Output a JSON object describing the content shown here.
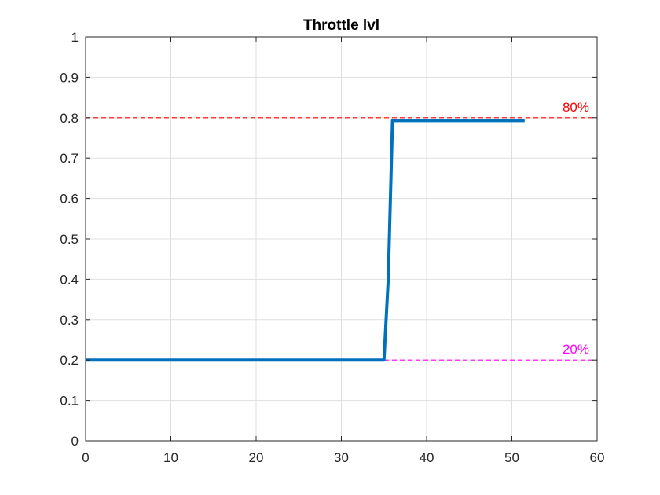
{
  "chart_data": {
    "type": "line",
    "title": "Throttle lvl",
    "xlabel": "",
    "ylabel": "",
    "xlim": [
      0,
      60
    ],
    "ylim": [
      0,
      1
    ],
    "xticks": [
      0,
      10,
      20,
      30,
      40,
      50,
      60
    ],
    "yticks": [
      0,
      0.1,
      0.2,
      0.3,
      0.4,
      0.5,
      0.6,
      0.7,
      0.8,
      0.9,
      1
    ],
    "grid": true,
    "series": [
      {
        "name": "",
        "color": "#0072BD",
        "x": [
          0,
          35,
          35.5,
          36,
          51.5
        ],
        "y": [
          0.2,
          0.2,
          0.4,
          0.793,
          0.793
        ]
      }
    ],
    "reference_lines": [
      {
        "y": 0.8,
        "label": "80%",
        "color": "#FF0000"
      },
      {
        "y": 0.2,
        "label": "20%",
        "color": "#FF00FF"
      }
    ]
  }
}
